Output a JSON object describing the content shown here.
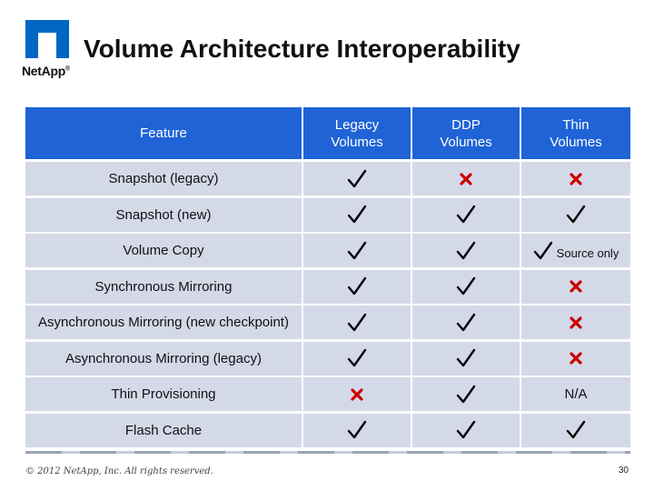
{
  "header": {
    "title": "Volume Architecture Interoperability",
    "logo_text": "NetApp"
  },
  "table": {
    "columns": [
      {
        "line1": "Feature",
        "line2": ""
      },
      {
        "line1": "Legacy",
        "line2": "Volumes"
      },
      {
        "line1": "DDP",
        "line2": "Volumes"
      },
      {
        "line1": "Thin",
        "line2": "Volumes"
      }
    ],
    "rows": [
      {
        "feature": "Snapshot (legacy)",
        "legacy": "check",
        "ddp": "cross",
        "thin": "cross"
      },
      {
        "feature": "Snapshot (new)",
        "legacy": "check",
        "ddp": "check",
        "thin": "check"
      },
      {
        "feature": "Volume Copy",
        "legacy": "check",
        "ddp": "check",
        "thin": "check",
        "thin_note": "Source only"
      },
      {
        "feature": "Synchronous Mirroring",
        "legacy": "check",
        "ddp": "check",
        "thin": "cross"
      },
      {
        "feature": "Asynchronous Mirroring (new checkpoint)",
        "legacy": "check",
        "ddp": "check",
        "thin": "cross"
      },
      {
        "feature": "Asynchronous Mirroring (legacy)",
        "legacy": "check",
        "ddp": "check",
        "thin": "cross"
      },
      {
        "feature": "Thin Provisioning",
        "legacy": "cross",
        "ddp": "check",
        "thin": "N/A"
      },
      {
        "feature": "Flash Cache",
        "legacy": "check",
        "ddp": "check",
        "thin": "check"
      }
    ]
  },
  "colors": {
    "header_bg": "#1f63d6",
    "row_bg": "#d4d9e8",
    "cross": "#cc0000",
    "logo_blue": "#0067c5"
  },
  "footer": {
    "copyright": "© 2012 NetApp, Inc. All rights reserved.",
    "page_number": "30"
  }
}
